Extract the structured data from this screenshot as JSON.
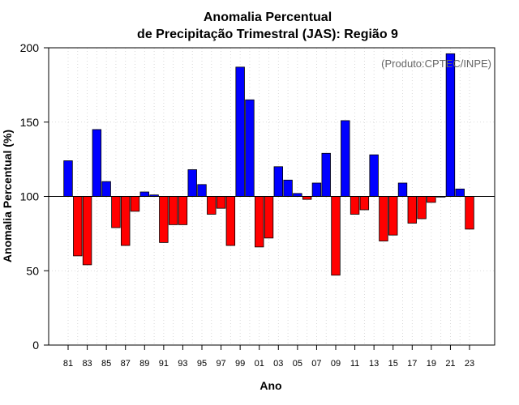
{
  "chart_data": {
    "type": "bar",
    "title_line1": "Anomalia Percentual",
    "title_line2": "de Precipitação Trimestral (JAS): Região 9",
    "xlabel": "Ano",
    "ylabel": "Anomalia Percentual (%)",
    "watermark": "(Produto:CPTEC/INPE)",
    "baseline": 100,
    "ylim": [
      0,
      200
    ],
    "yticks": [
      0,
      50,
      100,
      150,
      200
    ],
    "categories": [
      "81",
      "82",
      "83",
      "84",
      "85",
      "86",
      "87",
      "88",
      "89",
      "90",
      "91",
      "92",
      "93",
      "94",
      "95",
      "96",
      "97",
      "98",
      "99",
      "00",
      "01",
      "02",
      "03",
      "04",
      "05",
      "06",
      "07",
      "08",
      "09",
      "10",
      "11",
      "12",
      "13",
      "14",
      "15",
      "16",
      "17",
      "18",
      "19",
      "20",
      "21",
      "22",
      "23"
    ],
    "xtick_labels": [
      "81",
      "83",
      "85",
      "87",
      "89",
      "91",
      "93",
      "95",
      "97",
      "99",
      "01",
      "03",
      "05",
      "07",
      "09",
      "11",
      "13",
      "15",
      "17",
      "19",
      "21",
      "23"
    ],
    "values": [
      124,
      60,
      54,
      145,
      110,
      79,
      67,
      90,
      103,
      101,
      69,
      81,
      81,
      118,
      108,
      88,
      92,
      67,
      187,
      165,
      66,
      72,
      120,
      111,
      102,
      98,
      109,
      129,
      47,
      151,
      88,
      91,
      128,
      70,
      74,
      109,
      82,
      85,
      96,
      100,
      196,
      105,
      78
    ],
    "colors": {
      "above": "#0000ff",
      "below": "#ff0000",
      "edge": "#000000",
      "grid": "#d0d0d0"
    }
  }
}
